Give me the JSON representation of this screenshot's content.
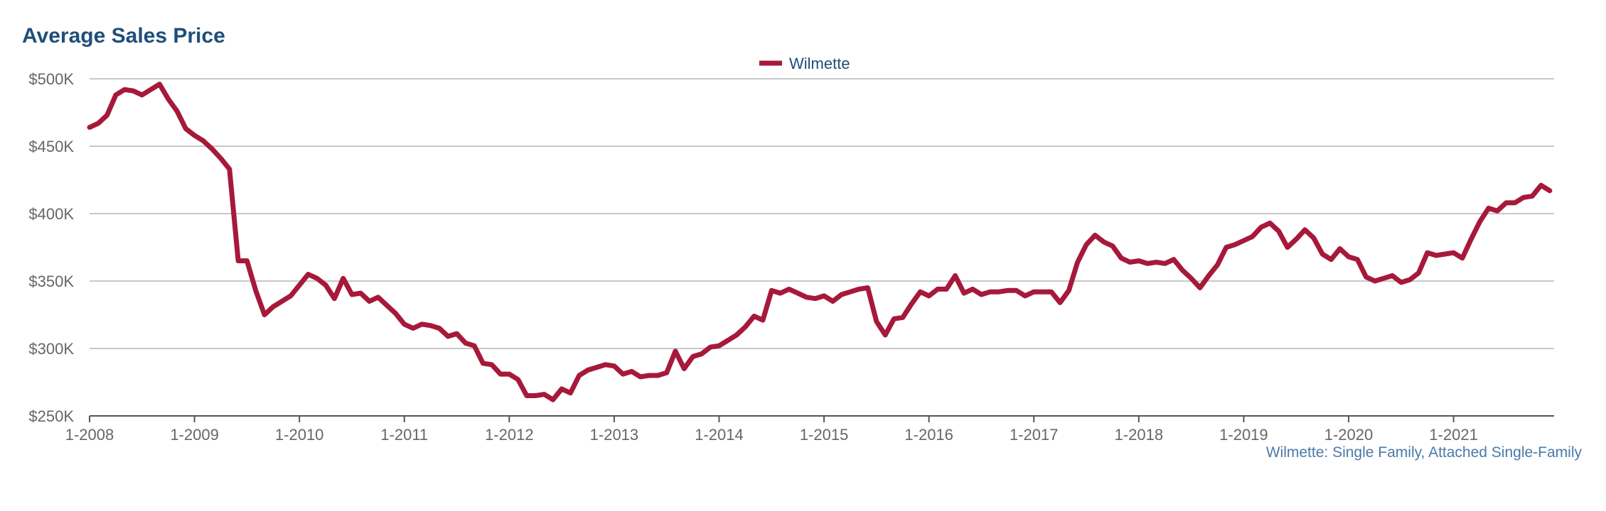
{
  "chart_data": {
    "type": "line",
    "title": "Average Sales Price",
    "xlabel": "",
    "ylabel": "",
    "ylim": [
      250000,
      500000
    ],
    "y_ticks": [
      {
        "value": 500000,
        "label": "$500K"
      },
      {
        "value": 450000,
        "label": "$450K"
      },
      {
        "value": 400000,
        "label": "$400K"
      },
      {
        "value": 350000,
        "label": "$350K"
      },
      {
        "value": 300000,
        "label": "$300K"
      },
      {
        "value": 250000,
        "label": "$250K"
      }
    ],
    "x_start": "2008-01",
    "x_ticks": [
      "1-2008",
      "1-2009",
      "1-2010",
      "1-2011",
      "1-2012",
      "1-2013",
      "1-2014",
      "1-2015",
      "1-2016",
      "1-2017",
      "1-2018",
      "1-2019",
      "1-2020",
      "1-2021"
    ],
    "grid": true,
    "legend_position": "top-center",
    "series": [
      {
        "name": "Wilmette",
        "color": "#a6193a",
        "values": [
          464000,
          467000,
          473000,
          488000,
          492000,
          491000,
          488000,
          492000,
          496000,
          485000,
          476000,
          463000,
          458000,
          454000,
          448000,
          441000,
          433000,
          365000,
          365000,
          343000,
          325000,
          331000,
          335000,
          339000,
          347000,
          355000,
          352000,
          347000,
          337000,
          352000,
          340000,
          341000,
          335000,
          338000,
          332000,
          326000,
          318000,
          315000,
          318000,
          317000,
          315000,
          309000,
          311000,
          304000,
          302000,
          289000,
          288000,
          281000,
          281000,
          277000,
          265000,
          265000,
          266000,
          262000,
          270000,
          267000,
          280000,
          284000,
          286000,
          288000,
          287000,
          281000,
          283000,
          279000,
          280000,
          280000,
          282000,
          298000,
          285000,
          294000,
          296000,
          301000,
          302000,
          306000,
          310000,
          316000,
          324000,
          321000,
          343000,
          341000,
          344000,
          341000,
          338000,
          337000,
          339000,
          335000,
          340000,
          342000,
          344000,
          345000,
          320000,
          310000,
          322000,
          323000,
          333000,
          342000,
          339000,
          344000,
          344000,
          354000,
          341000,
          344000,
          340000,
          342000,
          342000,
          343000,
          343000,
          339000,
          342000,
          342000,
          342000,
          334000,
          343000,
          364000,
          377000,
          384000,
          379000,
          376000,
          367000,
          364000,
          365000,
          363000,
          364000,
          363000,
          366000,
          358000,
          352000,
          345000,
          354000,
          362000,
          375000,
          377000,
          380000,
          383000,
          390000,
          393000,
          387000,
          375000,
          381000,
          388000,
          382000,
          370000,
          366000,
          374000,
          368000,
          366000,
          353000,
          350000,
          352000,
          354000,
          349000,
          351000,
          356000,
          371000,
          369000,
          370000,
          371000,
          367000,
          381000,
          394000,
          404000,
          402000,
          408000,
          408000,
          412000,
          413000,
          421000,
          417000
        ]
      }
    ]
  },
  "footnote": "Wilmette: Single Family, Attached Single-Family"
}
